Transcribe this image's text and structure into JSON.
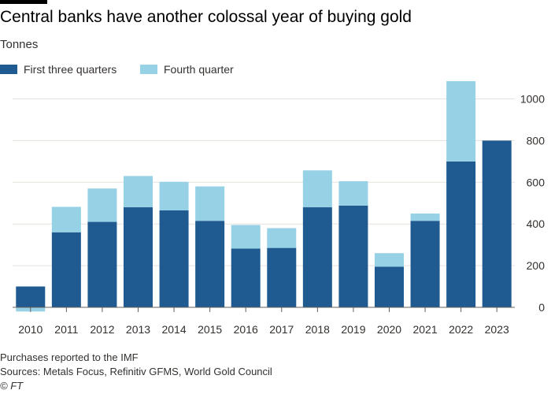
{
  "header": {
    "title": "Central banks have another colossal year of buying gold",
    "subtitle": "Tonnes"
  },
  "legend": {
    "items": [
      {
        "label": "First three quarters",
        "color": "#1f5b91"
      },
      {
        "label": "Fourth quarter",
        "color": "#96d1e6"
      }
    ]
  },
  "footer": {
    "note": "Purchases reported to the IMF",
    "sources": "Sources: Metals Focus, Refinitiv GFMS, World Gold Council",
    "copyright": "© FT"
  },
  "chart_data": {
    "type": "bar",
    "stacked": true,
    "title": "Central banks have another colossal year of buying gold",
    "ylabel": "Tonnes",
    "xlabel": "",
    "ylim": [
      0,
      1100
    ],
    "yticks": [
      0,
      200,
      400,
      600,
      800,
      1000
    ],
    "grid": true,
    "legend_position": "top-left",
    "categories": [
      "2010",
      "2011",
      "2012",
      "2013",
      "2014",
      "2015",
      "2016",
      "2017",
      "2018",
      "2019",
      "2020",
      "2021",
      "2022",
      "2023"
    ],
    "series": [
      {
        "name": "First three quarters",
        "color": "#1f5b91",
        "values": [
          100,
          360,
          410,
          480,
          465,
          415,
          282,
          285,
          480,
          488,
          195,
          415,
          700,
          800
        ]
      },
      {
        "name": "Fourth quarter",
        "color": "#96d1e6",
        "values": [
          -20,
          122,
          160,
          150,
          137,
          165,
          113,
          95,
          177,
          117,
          65,
          35,
          385,
          0
        ]
      }
    ]
  }
}
